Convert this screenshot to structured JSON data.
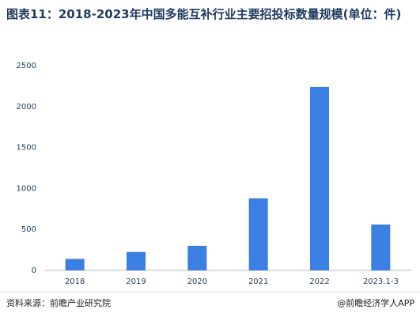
{
  "chart_data": {
    "type": "bar",
    "title": "图表11：2018-2023年中国多能互补行业主要招投标数量规模(单位：件)",
    "categories": [
      "2018",
      "2019",
      "2020",
      "2021",
      "2022",
      "2023.1-3"
    ],
    "values": [
      140,
      225,
      300,
      880,
      2240,
      560
    ],
    "color": "#3b7fe2",
    "ylim": [
      0,
      2500
    ],
    "yticks": [
      0,
      500,
      1000,
      1500,
      2000,
      2500
    ],
    "grid": false
  },
  "footer": {
    "source": "资料来源：前瞻产业研究院",
    "brand": "@前瞻经济学人APP"
  }
}
